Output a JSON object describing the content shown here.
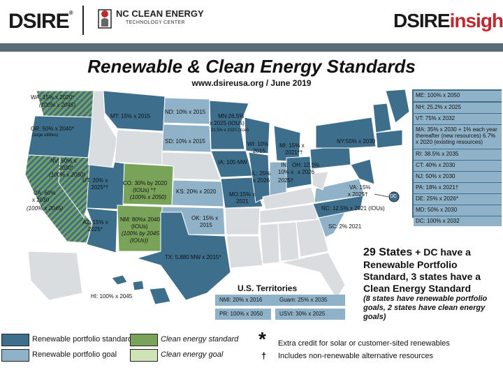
{
  "header": {
    "logo_left": "DSIRE",
    "logo_left_mark": "®",
    "partner_line1": "NC CLEAN ENERGY",
    "partner_line2": "TECHNOLOGY CENTER",
    "logo_right_a": "DSIRE",
    "logo_right_b": "insight"
  },
  "title": "Renewable & Clean Energy Standards",
  "subtitle": "www.dsireusa.org / June 2019",
  "colors": {
    "rps_standard": "#3d6e8c",
    "rps_goal": "#8fb2c8",
    "ces_standard": "#7aa35a",
    "ces_goal": "#cfe3b4",
    "none": "#d9dde0",
    "header_bar": "#5a6b78"
  },
  "states": {
    "wa_1": "WA: 15% x 2020*",
    "wa_2": "(100% x 2045)",
    "or_1": "OR: 50% x 2040*",
    "or_2": "(large utilities)",
    "ca_1": "CA: 60%",
    "ca_2": "x 2030",
    "ca_3": "(100% x 2045)",
    "nv_1": "NV: 50% x",
    "nv_2": "2030*",
    "nv_3": "(100% x 2050)",
    "mt": "MT: 15% x 2015",
    "nd": "ND: 10% x 2015",
    "sd": "SD: 10% x 2015",
    "mn_1": "MN:26.5%",
    "mn_2": "x 2025 (IOUs)",
    "mn_3": "31.5% x 2020 (Xcel)",
    "ut_1": "UT: 20% x",
    "ut_2": "2025*†",
    "co_1": "CO: 30% by 2020",
    "co_2": "(IOUs) *†",
    "co_3": "(100% x 2050)",
    "az_1": "AZ: 15% x",
    "az_2": "2025*",
    "nm_1": "NM: 80%x 2040",
    "nm_2": "(IOUs)",
    "nm_3": "(100% by 2045",
    "nm_4": "(IOUs))",
    "ks": "KS: 20% x 2020",
    "ok_1": "OK: 15% x",
    "ok_2": "2015",
    "tx": "TX: 5,880 MW x 2015*",
    "ia": "IA: 105 MW",
    "mo_1": "MO:15% x",
    "mo_2": "2021",
    "wi_1": "WI: 10%",
    "wi_2": "2015",
    "mi_1": "MI: 15% x",
    "mi_2": "2021*†",
    "il_1": "IL: 25%",
    "il_2": "x 2026",
    "in_1": "IN:",
    "in_2": "10% x",
    "in_3": "2025†",
    "oh_1": "OH: 12.5%",
    "oh_2": "x 2026",
    "ny": "NY:50% x 2030",
    "va_1": "VA: 15%",
    "va_2": "x 2025†",
    "dc": "DC",
    "nc": "NC: 12.5% x 2021 (IOUs)",
    "sc": "SC: 2% 2021",
    "hi": "HI: 100% x 2045"
  },
  "northeast": [
    "ME: 100% x 2050",
    "NH: 25.2% x 2025",
    "VT: 75% x 2032",
    "MA: 35% x 2030 + 1% each year thereafter (new resources) 6.7% x 2020 (existing resources)",
    "RI: 38.5% x 2035",
    "CT: 40% x 2030",
    "NJ: 50% x 2030",
    "PA: 18% x 2021†",
    "DE: 25% x 2026*",
    "MD: 50% x 2030",
    "DC: 100% x 2032"
  ],
  "summary": {
    "count": "29 States",
    "line1_rest": " + DC have a Renewable Portfolio Standard, 3 states have a Clean Energy Standard",
    "sub": "(8 states have renewable portfolio goals, 2 states have clean energy goals)"
  },
  "territories": {
    "title": "U.S. Territories",
    "nmi": "NMI: 20% x 2016",
    "guam": "Guam: 25% x 2035",
    "pr": "PR: 100% x 2050",
    "usvi": "USVI: 30% x 2025"
  },
  "legend": {
    "rps_standard": "Renewable portfolio standard",
    "rps_goal": "Renewable portfolio goal",
    "ces_standard": "Clean energy standard",
    "ces_goal": "Clean energy goal"
  },
  "notes": {
    "star_sym": "*",
    "star_txt": "Extra credit for solar or customer-sited renewables",
    "dagger_sym": "†",
    "dagger_txt": "Includes non-renewable alternative resources"
  }
}
